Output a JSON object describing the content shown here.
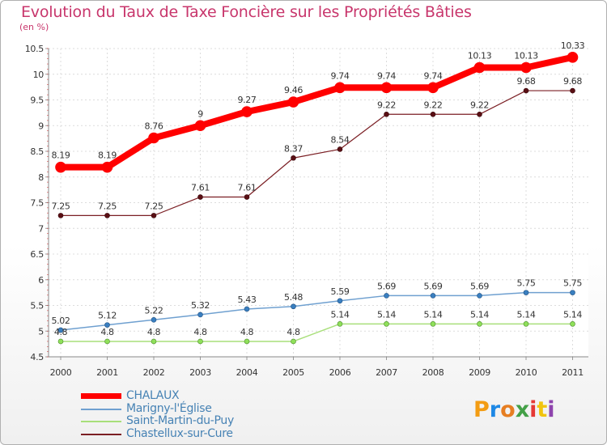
{
  "page": {
    "title": "Evolution du Taux de Taxe Foncière sur les Propriétés Bâties",
    "unit": "(en %)"
  },
  "logo": {
    "text": "Proxiti",
    "letters": [
      "P",
      "r",
      "o",
      "x",
      "i",
      "t",
      "i"
    ],
    "colors": [
      "#f39c12",
      "#1e88e5",
      "#e67e22",
      "#43a047",
      "#e53935",
      "#f1c40f",
      "#8e44ad"
    ]
  },
  "chart_data": {
    "type": "line",
    "title": "Evolution du Taux de Taxe Foncière sur les Propriétés Bâties",
    "ylabel": "(en %)",
    "xlabel": "",
    "ylim": [
      4.5,
      10.5
    ],
    "yticks": [
      "4.5",
      "5",
      "5.5",
      "6",
      "6.5",
      "7",
      "7.5",
      "8",
      "8.5",
      "9",
      "9.5",
      "10",
      "10.5"
    ],
    "x": [
      "2000",
      "2001",
      "2002",
      "2003",
      "2004",
      "2005",
      "2006",
      "2007",
      "2008",
      "2009",
      "2010",
      "2011"
    ],
    "grid": true,
    "legend_position": "bottom-left",
    "series": [
      {
        "name": "Chastellux-sur-Cure",
        "color": "#7b1f24",
        "values": [
          7.25,
          7.25,
          7.25,
          7.61,
          7.61,
          8.37,
          8.54,
          9.22,
          9.22,
          9.22,
          9.68,
          9.68
        ],
        "labels": [
          "7.25",
          "7.25",
          "7.25",
          "7.61",
          "7.61",
          "8.37",
          "8.54",
          "9.22",
          "9.22",
          "9.22",
          "9.68",
          "9.68"
        ]
      },
      {
        "name": "Marigny-l'Église",
        "color": "#6fa0d0",
        "values": [
          5.02,
          5.12,
          5.22,
          5.32,
          5.43,
          5.48,
          5.59,
          5.69,
          5.69,
          5.69,
          5.75,
          5.75
        ],
        "labels": [
          "5.02",
          "5.12",
          "5.22",
          "5.32",
          "5.43",
          "5.48",
          "5.59",
          "5.69",
          "5.69",
          "5.69",
          "5.75",
          "5.75"
        ]
      },
      {
        "name": "Saint-Martin-du-Puy",
        "color": "#a8df7a",
        "values": [
          4.8,
          4.8,
          4.8,
          4.8,
          4.8,
          4.8,
          5.14,
          5.14,
          5.14,
          5.14,
          5.14,
          5.14
        ],
        "labels": [
          "4.8",
          "4.8",
          "4.8",
          "4.8",
          "4.8",
          "4.8",
          "5.14",
          "5.14",
          "5.14",
          "5.14",
          "5.14",
          "5.14"
        ]
      },
      {
        "name": "CHALAUX",
        "color": "#ff0000",
        "values": [
          8.19,
          8.19,
          8.76,
          9.0,
          9.27,
          9.46,
          9.74,
          9.74,
          9.74,
          10.13,
          10.13,
          10.33
        ],
        "labels": [
          "8.19",
          "8.19",
          "8.76",
          "9",
          "9.27",
          "9.46",
          "9.74",
          "9.74",
          "9.74",
          "10.13",
          "10.13",
          "10.33"
        ]
      }
    ],
    "legend": [
      "CHALAUX",
      "Marigny-l'Église",
      "Saint-Martin-du-Puy",
      "Chastellux-sur-Cure"
    ]
  }
}
